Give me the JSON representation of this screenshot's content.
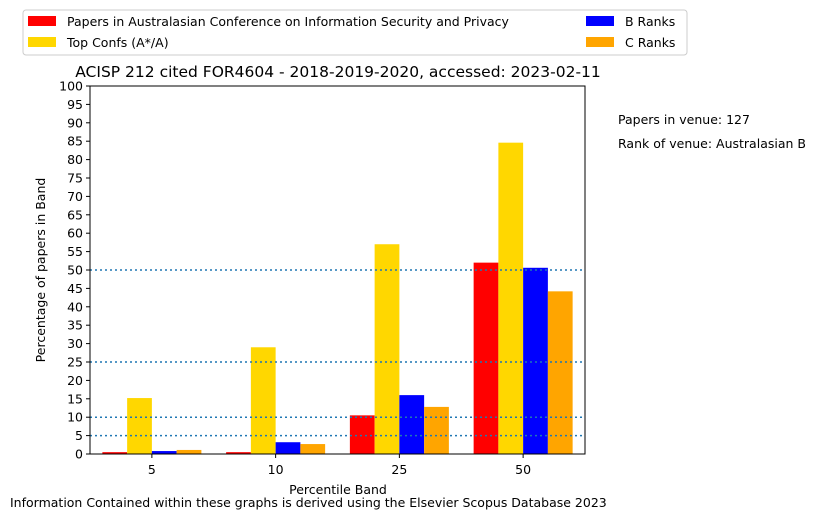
{
  "chart_data": {
    "type": "bar",
    "title": "ACISP 212 cited FOR4604 - 2018-2019-2020, accessed: 2023-02-11",
    "xlabel": "Percentile Band",
    "ylabel": "Percentage of papers in Band",
    "categories": [
      "5",
      "10",
      "25",
      "50"
    ],
    "ylim": [
      0,
      100
    ],
    "yticks": [
      0,
      5,
      10,
      15,
      20,
      25,
      30,
      35,
      40,
      45,
      50,
      55,
      60,
      65,
      70,
      75,
      80,
      85,
      90,
      95,
      100
    ],
    "reference_lines": [
      5,
      10,
      25,
      50
    ],
    "legend_position": "top-left, above plot",
    "series": [
      {
        "name": "Papers in Australasian Conference on Information Security and Privacy",
        "color": "#ff0000",
        "values": [
          0.5,
          0.5,
          10.5,
          52
        ]
      },
      {
        "name": "Top Confs (A*/A)",
        "color": "#ffd700",
        "values": [
          15.2,
          29,
          57,
          84.6
        ]
      },
      {
        "name": "B Ranks",
        "color": "#0000ff",
        "values": [
          0.8,
          3.2,
          16,
          50.6
        ]
      },
      {
        "name": "C Ranks",
        "color": "#ffa500",
        "values": [
          1.1,
          2.7,
          12.8,
          44.2
        ]
      }
    ]
  },
  "notes": {
    "papers_in_venue": "Papers in venue: 127",
    "rank_of_venue": "Rank of venue: Australasian B"
  },
  "footer": "Information Contained within these graphs is derived using the Elsevier Scopus Database 2023"
}
